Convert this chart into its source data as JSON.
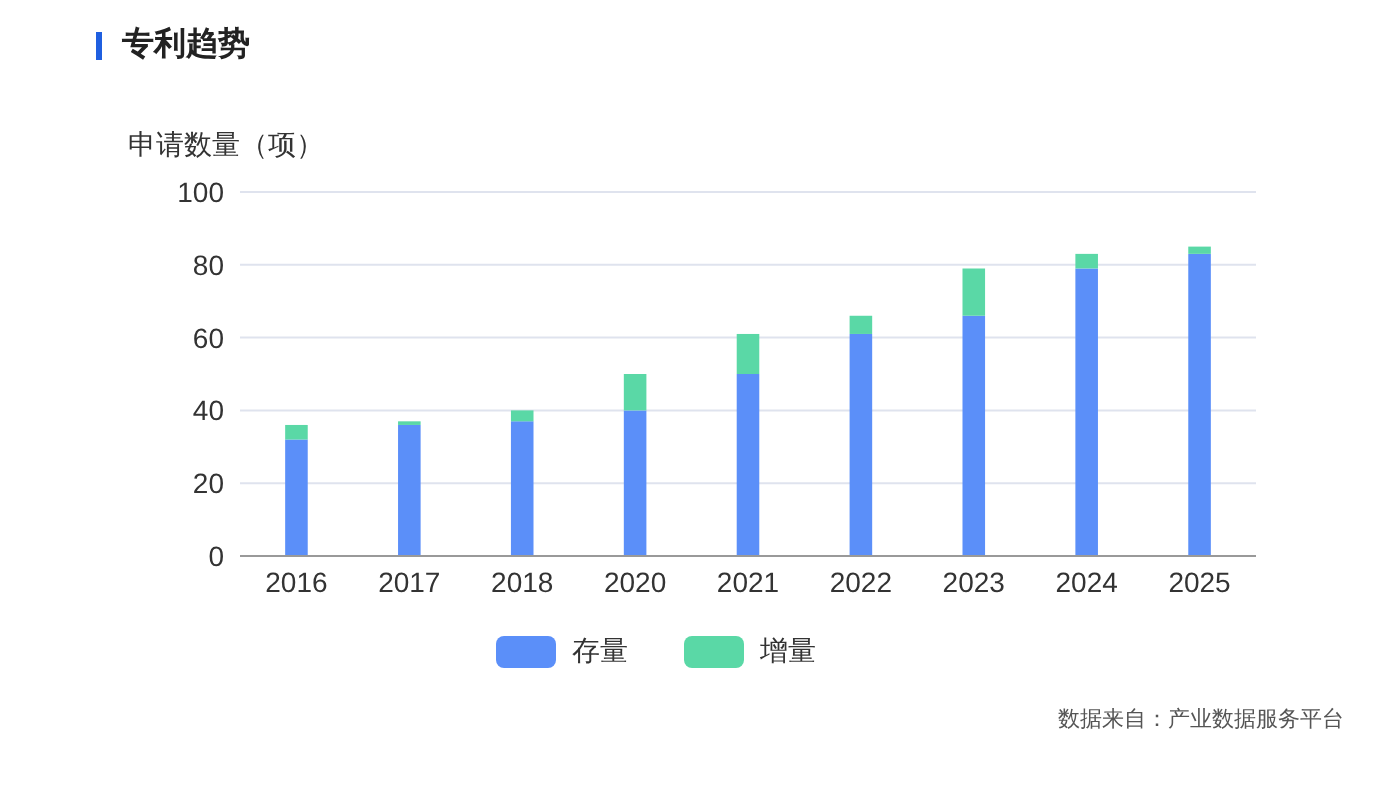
{
  "chart_data": {
    "type": "bar",
    "title": "专利趋势",
    "ylabel": "申请数量（项）",
    "categories": [
      "2016",
      "2017",
      "2018",
      "2020",
      "2021",
      "2022",
      "2023",
      "2024",
      "2025"
    ],
    "series": [
      {
        "name": "存量",
        "color": "#5b8ff9",
        "values": [
          32,
          36,
          37,
          40,
          50,
          61,
          66,
          79,
          83
        ]
      },
      {
        "name": "增量",
        "color": "#5ad8a6",
        "values": [
          4,
          1,
          3,
          10,
          11,
          5,
          13,
          4,
          2
        ]
      }
    ],
    "stacked": true,
    "ylim": [
      0,
      100
    ],
    "yticks": [
      0,
      20,
      40,
      60,
      80,
      100
    ],
    "grid": "y",
    "legend": "bottom",
    "annotations": [
      "数据来自：产业数据服务平台"
    ]
  }
}
